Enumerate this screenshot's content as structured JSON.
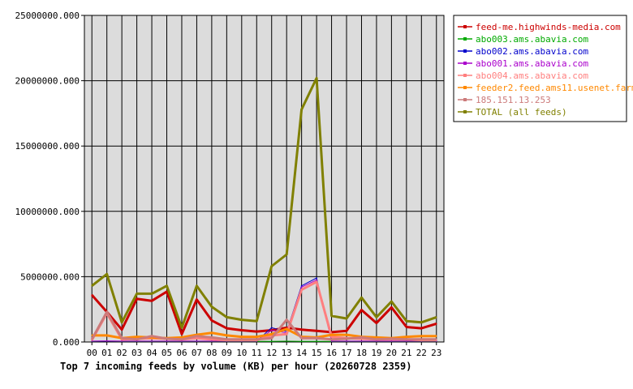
{
  "chart_data": {
    "type": "line",
    "title": "Top 7 incoming feeds by volume (KB) per hour (20260728 2359)",
    "xlabel": "",
    "ylabel": "",
    "ylim": [
      0,
      25000000
    ],
    "yticks": [
      "0.000",
      "5000000.000",
      "10000000.000",
      "15000000.000",
      "20000000.000",
      "25000000.000"
    ],
    "yticks_values": [
      0,
      5000000,
      10000000,
      15000000,
      20000000,
      25000000
    ],
    "categories": [
      "00",
      "01",
      "02",
      "03",
      "04",
      "05",
      "06",
      "07",
      "08",
      "09",
      "10",
      "11",
      "12",
      "13",
      "14",
      "15",
      "16",
      "17",
      "18",
      "19",
      "20",
      "21",
      "22",
      "23"
    ],
    "grid": true,
    "legend_position": "right",
    "series": [
      {
        "name": "feed-me.highwinds-media.com",
        "color": "#cc0000",
        "width": 3,
        "values": [
          3600000,
          2300000,
          950000,
          3300000,
          3150000,
          3850000,
          600000,
          3250000,
          1650000,
          1050000,
          900000,
          800000,
          900000,
          1100000,
          950000,
          850000,
          750000,
          850000,
          2450000,
          1450000,
          2650000,
          1150000,
          1050000,
          1400000
        ]
      },
      {
        "name": "abo003.ams.abavia.com",
        "color": "#00aa00",
        "width": 1,
        "values": [
          50000,
          60000,
          50000,
          50000,
          50000,
          50000,
          50000,
          50000,
          50000,
          50000,
          50000,
          50000,
          50000,
          60000,
          50000,
          50000,
          50000,
          50000,
          50000,
          50000,
          50000,
          50000,
          50000,
          50000
        ]
      },
      {
        "name": "abo002.ams.abavia.com",
        "color": "#0000cc",
        "width": 1,
        "values": [
          60000,
          70000,
          60000,
          60000,
          60000,
          60000,
          60000,
          60000,
          60000,
          60000,
          60000,
          60000,
          1100000,
          800000,
          4300000,
          4900000,
          60000,
          60000,
          60000,
          60000,
          60000,
          60000,
          60000,
          60000
        ]
      },
      {
        "name": "abo001.ams.abavia.com",
        "color": "#aa00cc",
        "width": 1,
        "values": [
          70000,
          80000,
          70000,
          70000,
          70000,
          70000,
          70000,
          70000,
          70000,
          70000,
          70000,
          70000,
          900000,
          700000,
          4200000,
          4750000,
          70000,
          70000,
          70000,
          70000,
          70000,
          70000,
          70000,
          70000
        ]
      },
      {
        "name": "abo004.ams.abavia.com",
        "color": "#ff7f7f",
        "width": 3,
        "values": [
          150000,
          2200000,
          200000,
          250000,
          300000,
          250000,
          200000,
          300000,
          200000,
          150000,
          150000,
          150000,
          500000,
          600000,
          4000000,
          4600000,
          400000,
          300000,
          250000,
          200000,
          200000,
          200000,
          150000,
          150000
        ]
      },
      {
        "name": "feeder2.feed.ams11.usenet.farm",
        "color": "#ff8800",
        "width": 3,
        "values": [
          500000,
          500000,
          300000,
          400000,
          350000,
          300000,
          350000,
          550000,
          700000,
          500000,
          400000,
          400000,
          600000,
          1000000,
          400000,
          350000,
          550000,
          550000,
          400000,
          350000,
          300000,
          400000,
          450000,
          450000
        ]
      },
      {
        "name": "185.151.13.253",
        "color": "#cc7a7a",
        "width": 3,
        "values": [
          200000,
          2300000,
          300000,
          200000,
          450000,
          250000,
          200000,
          450000,
          350000,
          200000,
          200000,
          200000,
          300000,
          1700000,
          300000,
          300000,
          200000,
          250000,
          350000,
          200000,
          250000,
          200000,
          200000,
          200000
        ]
      },
      {
        "name": "TOTAL (all feeds)",
        "color": "#808000",
        "width": 3,
        "values": [
          4300000,
          5200000,
          1500000,
          3700000,
          3700000,
          4300000,
          1100000,
          4300000,
          2700000,
          1900000,
          1700000,
          1600000,
          5800000,
          6700000,
          17800000,
          20200000,
          2000000,
          1800000,
          3400000,
          1900000,
          3100000,
          1600000,
          1500000,
          1900000
        ]
      }
    ]
  }
}
